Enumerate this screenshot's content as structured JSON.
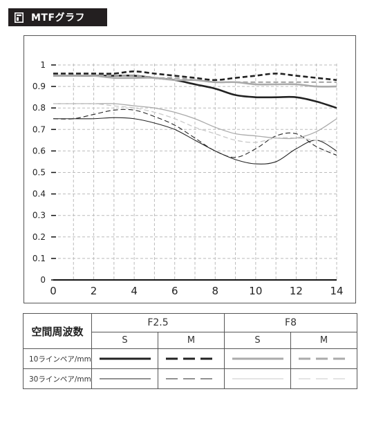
{
  "header": {
    "title": "MTFグラフ",
    "icon": "document-icon"
  },
  "chart_data": {
    "type": "line",
    "xlim": [
      0,
      14
    ],
    "ylim": [
      0,
      1
    ],
    "x_ticks": [
      "0",
      "2",
      "4",
      "6",
      "8",
      "10",
      "12",
      "14"
    ],
    "y_ticks": [
      "0",
      "0.1",
      "0.2",
      "0.3",
      "0.4",
      "0.5",
      "0.6",
      "0.7",
      "0.8",
      "0.9",
      "1"
    ],
    "grid": true,
    "series": [
      {
        "key": "s10_f25",
        "x": [
          0,
          1,
          2,
          3,
          4,
          5,
          6,
          7,
          8,
          9,
          10,
          11,
          12,
          13,
          14
        ],
        "y": [
          0.95,
          0.95,
          0.95,
          0.95,
          0.95,
          0.94,
          0.93,
          0.91,
          0.89,
          0.86,
          0.85,
          0.85,
          0.85,
          0.83,
          0.8
        ]
      },
      {
        "key": "m10_f25",
        "x": [
          0,
          1,
          2,
          3,
          4,
          5,
          6,
          7,
          8,
          9,
          10,
          11,
          12,
          13,
          14
        ],
        "y": [
          0.96,
          0.96,
          0.96,
          0.96,
          0.97,
          0.96,
          0.95,
          0.94,
          0.93,
          0.94,
          0.95,
          0.96,
          0.95,
          0.94,
          0.93
        ]
      },
      {
        "key": "s10_f8",
        "x": [
          0,
          1,
          2,
          3,
          4,
          5,
          6,
          7,
          8,
          9,
          10,
          11,
          12,
          13,
          14
        ],
        "y": [
          0.95,
          0.95,
          0.95,
          0.94,
          0.94,
          0.94,
          0.93,
          0.93,
          0.92,
          0.92,
          0.91,
          0.91,
          0.91,
          0.9,
          0.9
        ]
      },
      {
        "key": "m10_f8",
        "x": [
          0,
          1,
          2,
          3,
          4,
          5,
          6,
          7,
          8,
          9,
          10,
          11,
          12,
          13,
          14
        ],
        "y": [
          0.95,
          0.95,
          0.95,
          0.95,
          0.95,
          0.94,
          0.94,
          0.93,
          0.92,
          0.92,
          0.92,
          0.92,
          0.92,
          0.92,
          0.92
        ]
      },
      {
        "key": "s30_f25",
        "x": [
          0,
          1,
          2,
          3,
          4,
          5,
          6,
          7,
          8,
          9,
          10,
          11,
          12,
          13,
          14
        ],
        "y": [
          0.75,
          0.75,
          0.75,
          0.755,
          0.75,
          0.73,
          0.7,
          0.65,
          0.6,
          0.56,
          0.54,
          0.55,
          0.61,
          0.65,
          0.6
        ]
      },
      {
        "key": "m30_f25",
        "x": [
          0,
          1,
          2,
          3,
          4,
          5,
          6,
          7,
          8,
          9,
          10,
          11,
          12,
          13,
          14
        ],
        "y": [
          0.75,
          0.75,
          0.77,
          0.79,
          0.79,
          0.76,
          0.72,
          0.66,
          0.6,
          0.57,
          0.61,
          0.67,
          0.68,
          0.62,
          0.58
        ]
      },
      {
        "key": "s30_f8",
        "x": [
          0,
          1,
          2,
          3,
          4,
          5,
          6,
          7,
          8,
          9,
          10,
          11,
          12,
          13,
          14
        ],
        "y": [
          0.82,
          0.82,
          0.82,
          0.82,
          0.81,
          0.8,
          0.78,
          0.75,
          0.71,
          0.68,
          0.67,
          0.66,
          0.66,
          0.69,
          0.75
        ]
      },
      {
        "key": "m30_f8",
        "x": [
          0,
          1,
          2,
          3,
          4,
          5,
          6,
          7,
          8,
          9,
          10,
          11,
          12,
          13,
          14
        ],
        "y": [
          0.82,
          0.82,
          0.82,
          0.81,
          0.8,
          0.78,
          0.75,
          0.71,
          0.68,
          0.65,
          0.64,
          0.66,
          0.66,
          0.65,
          0.64
        ]
      }
    ]
  },
  "legend": {
    "freq_header": "空間周波数",
    "aperture_1": "F2.5",
    "aperture_2": "F8",
    "s_label": "S",
    "m_label": "M",
    "row_10": "10ラインペア/mm",
    "row_30": "30ラインペア/mm"
  },
  "colors": {
    "dark": "#222222",
    "light": "#aaaaaa",
    "light_30": "#c8c8c8",
    "grid": "#bbbbbb",
    "frame": "#555555"
  }
}
